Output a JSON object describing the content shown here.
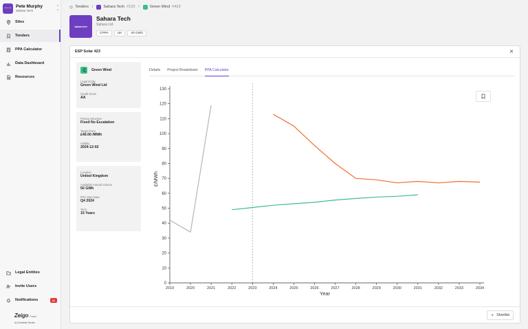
{
  "user": {
    "name": "Pete Murphy",
    "org": "Sahara Tech",
    "avatar_text": "sahara tech"
  },
  "nav": {
    "top": [
      {
        "label": "Sites",
        "icon": "location-pin-icon"
      },
      {
        "label": "Tenders",
        "icon": "bookmark-icon",
        "active": true
      },
      {
        "label": "PPA Calculator",
        "icon": "calculator-icon"
      },
      {
        "label": "Data Dashboard",
        "icon": "bar-chart-icon"
      },
      {
        "label": "Resources",
        "icon": "document-icon"
      }
    ],
    "bottom": [
      {
        "label": "Legal Entities",
        "icon": "folder-icon"
      },
      {
        "label": "Invite Users",
        "icon": "user-plus-icon"
      },
      {
        "label": "Notifications",
        "icon": "bell-icon",
        "badge": "11"
      }
    ]
  },
  "brand": {
    "name": "Zeigo",
    "power": "Power",
    "sub": "by Schneider Electric"
  },
  "breadcrumb": {
    "root": "Tenders",
    "company": "Sahara Tech",
    "company_num": "#123",
    "project": "Green Wind",
    "project_num": "#423"
  },
  "company": {
    "name": "Sahara Tech",
    "entity": "Sahara Ltd",
    "logo_text": "sahara tech",
    "tags": [
      "CPPA",
      "UK",
      "40 GWh"
    ]
  },
  "modal": {
    "title": "ESP Solar 423",
    "supplier": {
      "name": "Green Wind"
    },
    "panel1": [
      {
        "label": "Legal Entity",
        "value": "Green Wind Ltd"
      },
      {
        "label": "Credit Score",
        "value": "AA"
      }
    ],
    "panel2": [
      {
        "label": "Pricing Structure",
        "value": "Fixed No Escalation"
      },
      {
        "label": "Target Price",
        "value": "£40.00 /MWh"
      },
      {
        "label": "Validity",
        "value": "2024-12-02"
      }
    ],
    "panel3": [
      {
        "label": "Location",
        "value": "United Kingdom"
      },
      {
        "label": "Available Annual Volume",
        "value": "50 GWh"
      },
      {
        "label": "PPA Start Date",
        "value": "Q4 2024"
      },
      {
        "label": "Term",
        "value": "15 Years"
      }
    ],
    "tabs": [
      "Details",
      "Project Breakdown",
      "PPA Calculator"
    ],
    "active_tab": 2,
    "shortlist_label": "Shortlist"
  },
  "chart_data": {
    "type": "line",
    "xlabel": "Year",
    "ylabel": "£/MWh",
    "x": [
      2019,
      2020,
      2021,
      2022,
      2023,
      2024,
      2025,
      2026,
      2027,
      2028,
      2029,
      2030,
      2031,
      2032,
      2033,
      2034
    ],
    "ylim": [
      0,
      130
    ],
    "yticks": [
      0,
      10,
      20,
      30,
      40,
      50,
      60,
      70,
      80,
      90,
      100,
      110,
      120,
      130
    ],
    "vline_x": 2023,
    "series": [
      {
        "color": "#b5b5b5",
        "points": [
          [
            2019,
            42
          ],
          [
            2020,
            34
          ],
          [
            2021,
            119
          ]
        ]
      },
      {
        "color": "#f26d2e",
        "points": [
          [
            2024,
            113
          ],
          [
            2025,
            105
          ],
          [
            2026,
            92
          ],
          [
            2027,
            80
          ],
          [
            2028,
            70
          ],
          [
            2029,
            69
          ],
          [
            2030,
            67
          ],
          [
            2031,
            68
          ],
          [
            2032,
            67
          ],
          [
            2033,
            68
          ],
          [
            2034,
            67.5
          ]
        ]
      },
      {
        "color": "#3dbe8b",
        "points": [
          [
            2022,
            49
          ],
          [
            2023,
            50.5
          ],
          [
            2024,
            52
          ],
          [
            2025,
            53
          ],
          [
            2026,
            54
          ],
          [
            2027,
            55.5
          ],
          [
            2028,
            56.5
          ],
          [
            2029,
            57.5
          ],
          [
            2030,
            58
          ],
          [
            2031,
            59
          ]
        ]
      }
    ]
  }
}
